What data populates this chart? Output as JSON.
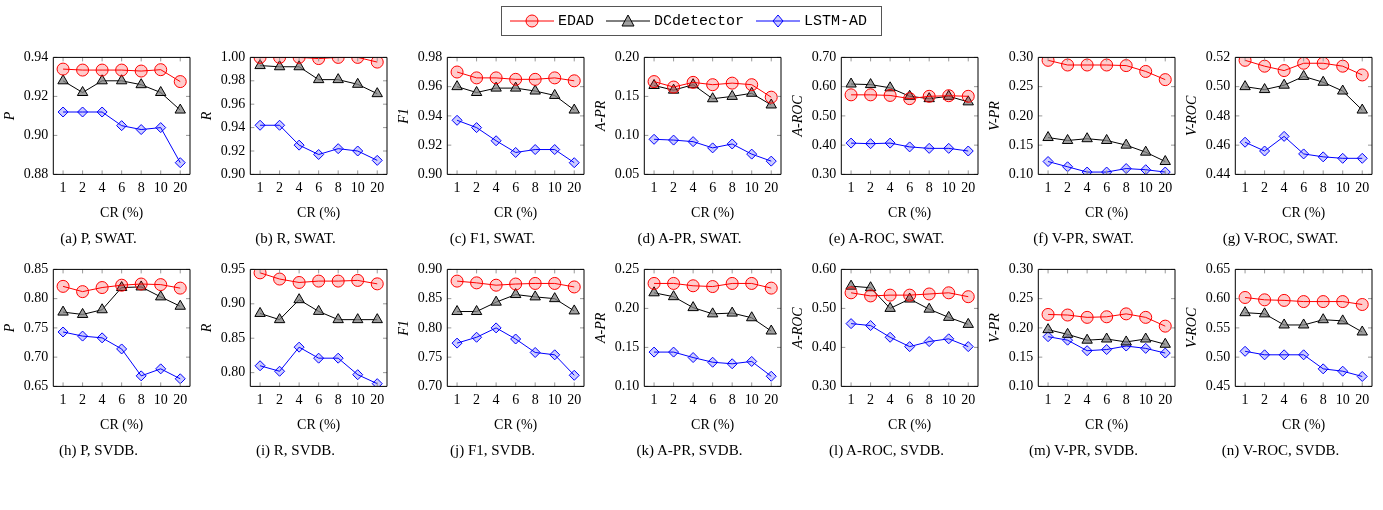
{
  "chart_data": [
    {
      "type": "line",
      "title": "(a) P, SWAT.",
      "xlabel": "CR (%)",
      "ylabel": "P",
      "legend": "top",
      "categories": [
        "1",
        "2",
        "4",
        "6",
        "8",
        "10",
        "20"
      ],
      "ylim": [
        0.88,
        0.94
      ],
      "yticks": [
        0.88,
        {
          "value": 0.9,
          "label": "0.90"
        },
        0.92,
        0.94
      ],
      "series": [
        {
          "name": "EDAD",
          "color": "#ff0000",
          "marker": "circle",
          "values": [
            0.934,
            0.9335,
            0.9335,
            0.9335,
            0.933,
            0.9337,
            0.9276
          ]
        },
        {
          "name": "DCdetector",
          "color": "#000000",
          "marker": "triangle",
          "values": [
            0.928,
            0.922,
            0.928,
            0.928,
            0.926,
            0.922,
            0.913
          ]
        },
        {
          "name": "LSTM-AD",
          "color": "#0000ff",
          "marker": "diamond",
          "values": [
            0.912,
            0.912,
            0.912,
            0.905,
            0.903,
            0.904,
            0.886
          ]
        }
      ]
    },
    {
      "type": "line",
      "title": "(b) R, SWAT.",
      "xlabel": "CR (%)",
      "ylabel": "R",
      "categories": [
        "1",
        "2",
        "4",
        "6",
        "8",
        "10",
        "20"
      ],
      "ylim": [
        0.9,
        1.0
      ],
      "yticks": [
        {
          "value": 0.9,
          "label": "0.90"
        },
        0.92,
        0.94,
        0.96,
        0.98,
        {
          "value": 1,
          "label": "1.00"
        }
      ],
      "series": [
        {
          "color": "#ff0000",
          "marker": "circle",
          "values": [
            1.0,
            1.0,
            1.0,
            0.999,
            1.0,
            1.0,
            0.996
          ]
        },
        {
          "color": "#000000",
          "marker": "triangle",
          "values": [
            0.993,
            0.992,
            0.992,
            0.981,
            0.981,
            0.977,
            0.969
          ]
        },
        {
          "color": "#0000ff",
          "marker": "diamond",
          "values": [
            0.942,
            0.942,
            0.925,
            0.917,
            0.922,
            0.92,
            0.912
          ]
        }
      ]
    },
    {
      "type": "line",
      "title": "(c) F1, SWAT.",
      "xlabel": "CR (%)",
      "ylabel": "F1",
      "categories": [
        "1",
        "2",
        "4",
        "6",
        "8",
        "10",
        "20"
      ],
      "ylim": [
        0.9,
        0.98
      ],
      "yticks": [
        {
          "value": 0.9,
          "label": "0.90"
        },
        0.92,
        0.94,
        0.96,
        0.98
      ],
      "series": [
        {
          "color": "#ff0000",
          "marker": "circle",
          "values": [
            0.97,
            0.966,
            0.966,
            0.965,
            0.965,
            0.966,
            0.964
          ]
        },
        {
          "color": "#000000",
          "marker": "triangle",
          "values": [
            0.96,
            0.956,
            0.959,
            0.959,
            0.957,
            0.954,
            0.944
          ]
        },
        {
          "color": "#0000ff",
          "marker": "diamond",
          "values": [
            0.937,
            0.932,
            0.923,
            0.915,
            0.917,
            0.917,
            0.908
          ]
        }
      ]
    },
    {
      "type": "line",
      "title": "(d) A-PR, SWAT.",
      "xlabel": "CR (%)",
      "ylabel": "A-PR",
      "categories": [
        "1",
        "2",
        "4",
        "6",
        "8",
        "10",
        "20"
      ],
      "ylim": [
        0.05,
        0.2
      ],
      "yticks": [
        0.05,
        {
          "value": 0.1,
          "label": "0.10"
        },
        0.15,
        {
          "value": 0.2,
          "label": "0.20"
        }
      ],
      "series": [
        {
          "color": "#ff0000",
          "marker": "circle",
          "values": [
            0.169,
            0.162,
            0.168,
            0.165,
            0.167,
            0.165,
            0.149
          ]
        },
        {
          "color": "#000000",
          "marker": "triangle",
          "values": [
            0.164,
            0.158,
            0.165,
            0.147,
            0.15,
            0.154,
            0.139
          ]
        },
        {
          "color": "#0000ff",
          "marker": "diamond",
          "values": [
            0.095,
            0.094,
            0.092,
            0.084,
            0.089,
            0.076,
            0.067
          ]
        }
      ]
    },
    {
      "type": "line",
      "title": "(e) A-ROC, SWAT.",
      "xlabel": "CR (%)",
      "ylabel": "A-ROC",
      "categories": [
        "1",
        "2",
        "4",
        "6",
        "8",
        "10",
        "20"
      ],
      "ylim": [
        0.3,
        0.7
      ],
      "yticks": [
        {
          "value": 0.3,
          "label": "0.30"
        },
        {
          "value": 0.4,
          "label": "0.40"
        },
        {
          "value": 0.5,
          "label": "0.50"
        },
        {
          "value": 0.6,
          "label": "0.60"
        },
        {
          "value": 0.7,
          "label": "0.70"
        }
      ],
      "series": [
        {
          "color": "#ff0000",
          "marker": "circle",
          "values": [
            0.572,
            0.572,
            0.57,
            0.559,
            0.567,
            0.569,
            0.567
          ]
        },
        {
          "color": "#000000",
          "marker": "triangle",
          "values": [
            0.609,
            0.607,
            0.596,
            0.567,
            0.559,
            0.567,
            0.548
          ]
        },
        {
          "color": "#0000ff",
          "marker": "diamond",
          "values": [
            0.407,
            0.405,
            0.407,
            0.394,
            0.389,
            0.389,
            0.38
          ]
        }
      ]
    },
    {
      "type": "line",
      "title": "(f) V-PR, SWAT.",
      "xlabel": "CR (%)",
      "ylabel": "V-PR",
      "categories": [
        "1",
        "2",
        "4",
        "6",
        "8",
        "10",
        "20"
      ],
      "ylim": [
        0.1,
        0.3
      ],
      "yticks": [
        {
          "value": 0.1,
          "label": "0.10"
        },
        0.15,
        {
          "value": 0.2,
          "label": "0.20"
        },
        0.25,
        {
          "value": 0.3,
          "label": "0.30"
        }
      ],
      "series": [
        {
          "color": "#ff0000",
          "marker": "circle",
          "values": [
            0.295,
            0.287,
            0.287,
            0.287,
            0.286,
            0.276,
            0.262
          ]
        },
        {
          "color": "#000000",
          "marker": "triangle",
          "values": [
            0.163,
            0.158,
            0.161,
            0.158,
            0.15,
            0.138,
            0.122
          ]
        },
        {
          "color": "#0000ff",
          "marker": "diamond",
          "values": [
            0.122,
            0.113,
            0.104,
            0.104,
            0.11,
            0.108,
            0.104
          ]
        }
      ]
    },
    {
      "type": "line",
      "title": "(g) V-ROC, SWAT.",
      "xlabel": "CR (%)",
      "ylabel": "V-ROC",
      "categories": [
        "1",
        "2",
        "4",
        "6",
        "8",
        "10",
        "20"
      ],
      "ylim": [
        0.44,
        0.52
      ],
      "yticks": [
        0.44,
        0.46,
        0.48,
        {
          "value": 0.5,
          "label": "0.50"
        },
        0.52
      ],
      "series": [
        {
          "color": "#ff0000",
          "marker": "circle",
          "values": [
            0.518,
            0.514,
            0.511,
            0.516,
            0.516,
            0.514,
            0.508
          ]
        },
        {
          "color": "#000000",
          "marker": "triangle",
          "values": [
            0.5,
            0.498,
            0.501,
            0.507,
            0.503,
            0.497,
            0.484
          ]
        },
        {
          "color": "#0000ff",
          "marker": "diamond",
          "values": [
            0.462,
            0.456,
            0.466,
            0.454,
            0.452,
            0.451,
            0.451
          ]
        }
      ]
    },
    {
      "type": "line",
      "title": "(h) P, SVDB.",
      "xlabel": "CR (%)",
      "ylabel": "P",
      "categories": [
        "1",
        "2",
        "4",
        "6",
        "8",
        "10",
        "20"
      ],
      "ylim": [
        0.65,
        0.85
      ],
      "yticks": [
        0.65,
        {
          "value": 0.7,
          "label": "0.70"
        },
        0.75,
        {
          "value": 0.8,
          "label": "0.80"
        },
        0.85
      ],
      "series": [
        {
          "color": "#ff0000",
          "marker": "circle",
          "values": [
            0.821,
            0.812,
            0.819,
            0.823,
            0.825,
            0.824,
            0.818
          ]
        },
        {
          "color": "#000000",
          "marker": "triangle",
          "values": [
            0.777,
            0.773,
            0.781,
            0.819,
            0.82,
            0.803,
            0.787
          ]
        },
        {
          "color": "#0000ff",
          "marker": "diamond",
          "values": [
            0.743,
            0.736,
            0.733,
            0.714,
            0.668,
            0.68,
            0.663
          ]
        }
      ]
    },
    {
      "type": "line",
      "title": "(i) R, SVDB.",
      "xlabel": "CR (%)",
      "ylabel": "R",
      "categories": [
        "1",
        "2",
        "4",
        "6",
        "8",
        "10",
        "20"
      ],
      "ylim": [
        0.78,
        0.95
      ],
      "yticks": [
        {
          "value": 0.8,
          "label": "0.80"
        },
        0.85,
        {
          "value": 0.9,
          "label": "0.90"
        },
        0.95
      ],
      "series": [
        {
          "color": "#ff0000",
          "marker": "circle",
          "values": [
            0.945,
            0.936,
            0.931,
            0.933,
            0.933,
            0.934,
            0.929
          ]
        },
        {
          "color": "#000000",
          "marker": "triangle",
          "values": [
            0.886,
            0.877,
            0.906,
            0.889,
            0.877,
            0.877,
            0.877
          ]
        },
        {
          "color": "#0000ff",
          "marker": "diamond",
          "values": [
            0.81,
            0.802,
            0.837,
            0.821,
            0.821,
            0.797,
            0.784
          ]
        }
      ]
    },
    {
      "type": "line",
      "title": "(j) F1, SVDB.",
      "xlabel": "CR (%)",
      "ylabel": "F1",
      "categories": [
        "1",
        "2",
        "4",
        "6",
        "8",
        "10",
        "20"
      ],
      "ylim": [
        0.7,
        0.9
      ],
      "yticks": [
        {
          "value": 0.7,
          "label": "0.70"
        },
        0.75,
        {
          "value": 0.8,
          "label": "0.80"
        },
        0.85,
        {
          "value": 0.9,
          "label": "0.90"
        }
      ],
      "series": [
        {
          "color": "#ff0000",
          "marker": "circle",
          "values": [
            0.88,
            0.877,
            0.873,
            0.875,
            0.876,
            0.876,
            0.87
          ]
        },
        {
          "color": "#000000",
          "marker": "triangle",
          "values": [
            0.828,
            0.828,
            0.844,
            0.857,
            0.853,
            0.85,
            0.829
          ]
        },
        {
          "color": "#0000ff",
          "marker": "diamond",
          "values": [
            0.774,
            0.784,
            0.8,
            0.781,
            0.758,
            0.754,
            0.719
          ]
        }
      ]
    },
    {
      "type": "line",
      "title": "(k) A-PR, SVDB.",
      "xlabel": "CR (%)",
      "ylabel": "A-PR",
      "categories": [
        "1",
        "2",
        "4",
        "6",
        "8",
        "10",
        "20"
      ],
      "ylim": [
        0.1,
        0.25
      ],
      "yticks": [
        {
          "value": 0.1,
          "label": "0.10"
        },
        0.15,
        {
          "value": 0.2,
          "label": "0.20"
        },
        0.25
      ],
      "series": [
        {
          "color": "#ff0000",
          "marker": "circle",
          "values": [
            0.232,
            0.232,
            0.229,
            0.228,
            0.232,
            0.232,
            0.226
          ]
        },
        {
          "color": "#000000",
          "marker": "triangle",
          "values": [
            0.22,
            0.215,
            0.201,
            0.193,
            0.194,
            0.188,
            0.171
          ]
        },
        {
          "color": "#0000ff",
          "marker": "diamond",
          "values": [
            0.144,
            0.144,
            0.137,
            0.131,
            0.129,
            0.132,
            0.113
          ]
        }
      ]
    },
    {
      "type": "line",
      "title": "(l) A-ROC, SVDB.",
      "xlabel": "CR (%)",
      "ylabel": "A-ROC",
      "categories": [
        "1",
        "2",
        "4",
        "6",
        "8",
        "10",
        "20"
      ],
      "ylim": [
        0.3,
        0.6
      ],
      "yticks": [
        {
          "value": 0.3,
          "label": "0.30"
        },
        {
          "value": 0.4,
          "label": "0.40"
        },
        {
          "value": 0.5,
          "label": "0.50"
        },
        {
          "value": 0.6,
          "label": "0.60"
        }
      ],
      "series": [
        {
          "color": "#ff0000",
          "marker": "circle",
          "values": [
            0.54,
            0.532,
            0.534,
            0.534,
            0.537,
            0.54,
            0.53
          ]
        },
        {
          "color": "#000000",
          "marker": "triangle",
          "values": [
            0.557,
            0.553,
            0.5,
            0.524,
            0.498,
            0.477,
            0.459
          ]
        },
        {
          "color": "#0000ff",
          "marker": "diamond",
          "values": [
            0.461,
            0.456,
            0.426,
            0.402,
            0.415,
            0.422,
            0.402
          ]
        }
      ]
    },
    {
      "type": "line",
      "title": "(m) V-PR, SVDB.",
      "xlabel": "CR (%)",
      "ylabel": "V-PR",
      "categories": [
        "1",
        "2",
        "4",
        "6",
        "8",
        "10",
        "20"
      ],
      "ylim": [
        0.1,
        0.3
      ],
      "yticks": [
        {
          "value": 0.1,
          "label": "0.10"
        },
        0.15,
        {
          "value": 0.2,
          "label": "0.20"
        },
        0.25,
        {
          "value": 0.3,
          "label": "0.30"
        }
      ],
      "series": [
        {
          "color": "#ff0000",
          "marker": "circle",
          "values": [
            0.223,
            0.222,
            0.218,
            0.219,
            0.224,
            0.218,
            0.203
          ]
        },
        {
          "color": "#000000",
          "marker": "triangle",
          "values": [
            0.197,
            0.189,
            0.179,
            0.181,
            0.176,
            0.181,
            0.172
          ]
        },
        {
          "color": "#0000ff",
          "marker": "diamond",
          "values": [
            0.185,
            0.179,
            0.161,
            0.163,
            0.169,
            0.165,
            0.157
          ]
        }
      ]
    },
    {
      "type": "line",
      "title": "(n) V-ROC, SVDB.",
      "xlabel": "CR (%)",
      "ylabel": "V-ROC",
      "categories": [
        "1",
        "2",
        "4",
        "6",
        "8",
        "10",
        "20"
      ],
      "ylim": [
        0.45,
        0.65
      ],
      "yticks": [
        0.45,
        {
          "value": 0.5,
          "label": "0.50"
        },
        0.55,
        {
          "value": 0.6,
          "label": "0.60"
        },
        0.65
      ],
      "series": [
        {
          "color": "#ff0000",
          "marker": "circle",
          "values": [
            0.602,
            0.598,
            0.597,
            0.595,
            0.595,
            0.595,
            0.59
          ]
        },
        {
          "color": "#000000",
          "marker": "triangle",
          "values": [
            0.576,
            0.574,
            0.555,
            0.555,
            0.564,
            0.562,
            0.543
          ]
        },
        {
          "color": "#0000ff",
          "marker": "diamond",
          "values": [
            0.51,
            0.504,
            0.504,
            0.504,
            0.48,
            0.476,
            0.467
          ]
        }
      ]
    }
  ]
}
